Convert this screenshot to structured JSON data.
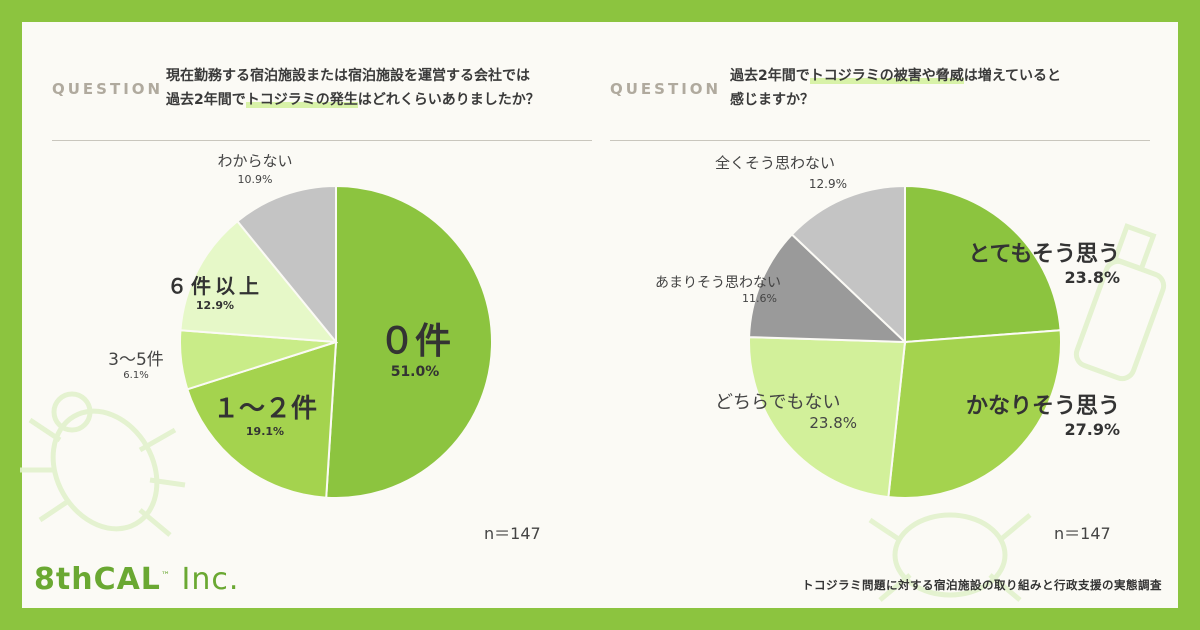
{
  "questions": [
    {
      "label": "QUESTION",
      "line1": "現在勤務する宿泊施設または宿泊施設を運営する会社では",
      "line2_pre": "過去2年間で",
      "line2_hl": "トコジラミの発生",
      "line2_post": "はどれくらいありましたか？",
      "n": "n＝147"
    },
    {
      "label": "QUESTION",
      "line1_pre": "過去2年間で",
      "line1_hl": "トコジラミの被害や脅威",
      "line1_post": "は増えていると",
      "line2": "感じますか？",
      "n": "n＝147"
    }
  ],
  "chart_data": [
    {
      "type": "pie",
      "slices": [
        {
          "label": "０件",
          "value": 51.0,
          "pct": "51.0%",
          "color": "#8cc43f"
        },
        {
          "label": "１～２件",
          "value": 19.1,
          "pct": "19.1%",
          "color": "#a4d34e"
        },
        {
          "label": "3～5件",
          "value": 6.1,
          "pct": "6.1%",
          "color": "#c9ec88"
        },
        {
          "label": "６件以上",
          "value": 12.9,
          "pct": "12.9%",
          "color": "#e6f8c8"
        },
        {
          "label": "わからない",
          "value": 10.9,
          "pct": "10.9%",
          "color": "#c4c4c4"
        }
      ]
    },
    {
      "type": "pie",
      "slices": [
        {
          "label": "とてもそう思う",
          "value": 23.8,
          "pct": "23.8%",
          "color": "#8cc43f"
        },
        {
          "label": "かなりそう思う",
          "value": 27.9,
          "pct": "27.9%",
          "color": "#a4d34e"
        },
        {
          "label": "どちらでもない",
          "value": 23.8,
          "pct": "23.8%",
          "color": "#d2f09a"
        },
        {
          "label": "あまりそう思わない",
          "value": 11.6,
          "pct": "11.6%",
          "color": "#9a9a9a"
        },
        {
          "label": "全くそう思わない",
          "value": 12.9,
          "pct": "12.9%",
          "color": "#c4c4c4"
        }
      ]
    }
  ],
  "footer": {
    "survey_title": "トコジラミ問題に対する宿泊施設の取り組みと行政支援の実態調査",
    "logo_main": "8thCAL",
    "logo_tm": "™",
    "logo_inc": " Inc."
  }
}
